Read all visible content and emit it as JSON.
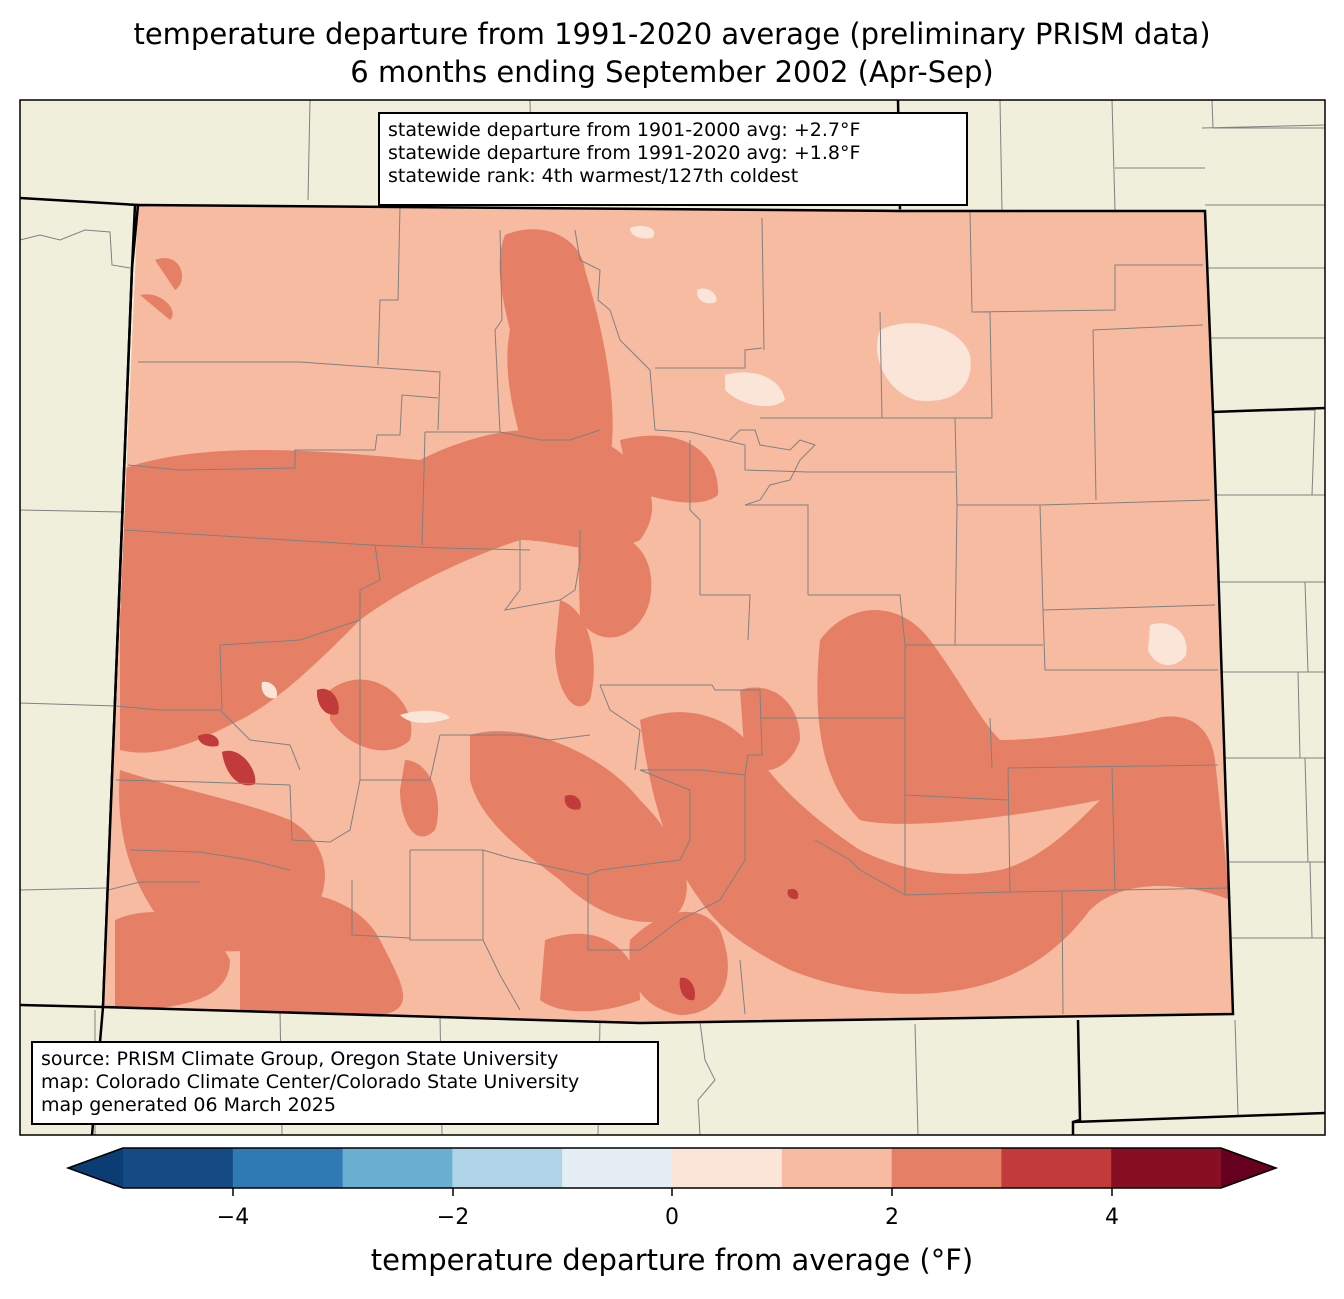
{
  "title": {
    "line1": "temperature departure from 1991-2020 average (preliminary PRISM data)",
    "line2": "6 months ending September 2002 (Apr-Sep)"
  },
  "stats": {
    "line1": "statewide departure from 1901-2000 avg: +2.7°F",
    "line2": "statewide departure from 1991-2020 avg: +1.8°F",
    "line3": "statewide rank: 4th warmest/127th coldest"
  },
  "source": {
    "line1": "source: PRISM Climate Group, Oregon State University",
    "line2": "map: Colorado Climate Center/Colorado State University",
    "line3": "map generated 06 March 2025"
  },
  "colorbar": {
    "label": "temperature departure from average (°F)",
    "ticks": [
      "−4",
      "−2",
      "0",
      "2",
      "4"
    ],
    "bins": [
      "#0b3d75",
      "#144b85",
      "#2f79b5",
      "#6aaed1",
      "#b0d4e7",
      "#e4eef4",
      "#fbe5d8",
      "#f7bba1",
      "#e58066",
      "#c13b3b",
      "#860f24",
      "#67001f"
    ]
  },
  "colors": {
    "background_land": "#efefdc",
    "state_base": "#f7bba1",
    "warm_patch": "#e58066",
    "hot_spot": "#c13b3b",
    "mild_patch": "#fbe5d8",
    "county_line": "#808080"
  }
}
